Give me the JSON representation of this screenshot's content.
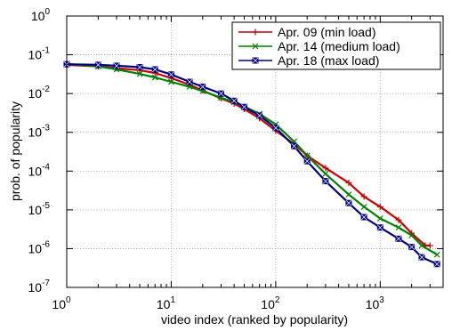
{
  "chart_data": {
    "type": "line",
    "xlabel": "video index (ranked by popularity)",
    "ylabel": "prob. of popularity",
    "x_scale": "log",
    "y_scale": "log",
    "xlim": [
      1,
      4000
    ],
    "ylim": [
      1e-07,
      1
    ],
    "grid": true,
    "legend_position": "top-right",
    "x_ticks": [
      {
        "base": "10",
        "exp": "0",
        "value": 1
      },
      {
        "base": "10",
        "exp": "1",
        "value": 10
      },
      {
        "base": "10",
        "exp": "2",
        "value": 100
      },
      {
        "base": "10",
        "exp": "3",
        "value": 1000
      }
    ],
    "y_ticks": [
      {
        "base": "10",
        "exp": "0",
        "value": 1
      },
      {
        "base": "10",
        "exp": "-1",
        "value": 0.1
      },
      {
        "base": "10",
        "exp": "-2",
        "value": 0.01
      },
      {
        "base": "10",
        "exp": "-3",
        "value": 0.001
      },
      {
        "base": "10",
        "exp": "-4",
        "value": 0.0001
      },
      {
        "base": "10",
        "exp": "-5",
        "value": 1e-05
      },
      {
        "base": "10",
        "exp": "-6",
        "value": 1e-06
      },
      {
        "base": "10",
        "exp": "-7",
        "value": 1e-07
      }
    ],
    "series": [
      {
        "name": "Apr. 09 (min load)",
        "color": "#cc0000",
        "marker": "plus",
        "x": [
          1,
          2,
          3,
          5,
          7,
          10,
          15,
          20,
          30,
          40,
          50,
          70,
          100,
          150,
          200,
          300,
          500,
          700,
          1000,
          1500,
          2000,
          2700,
          3000
        ],
        "y": [
          0.055,
          0.05,
          0.045,
          0.04,
          0.034,
          0.025,
          0.017,
          0.012,
          0.0075,
          0.0055,
          0.004,
          0.0023,
          0.0011,
          0.0005,
          0.00025,
          0.00012,
          5e-05,
          2.2e-05,
          1.2e-05,
          5.5e-06,
          2.5e-06,
          1.2e-06,
          1.2e-06
        ]
      },
      {
        "name": "Apr. 14 (medium load)",
        "color": "#008000",
        "marker": "x",
        "x": [
          1,
          2,
          3,
          5,
          7,
          10,
          15,
          20,
          30,
          40,
          50,
          70,
          100,
          150,
          200,
          300,
          500,
          700,
          1000,
          1500,
          2000,
          2500,
          3500
        ],
        "y": [
          0.058,
          0.05,
          0.042,
          0.032,
          0.026,
          0.02,
          0.015,
          0.0115,
          0.0078,
          0.006,
          0.0046,
          0.003,
          0.0016,
          0.00058,
          0.00025,
          8.5e-05,
          2.5e-05,
          1.2e-05,
          6e-06,
          3.5e-06,
          2.2e-06,
          1.2e-06,
          7e-07
        ]
      },
      {
        "name": "Apr. 18 (max load)",
        "color": "#000080",
        "marker": "box",
        "x": [
          1,
          2,
          3,
          5,
          7,
          10,
          15,
          20,
          30,
          40,
          50,
          70,
          100,
          150,
          200,
          300,
          500,
          700,
          1000,
          1500,
          2000,
          2500,
          3500
        ],
        "y": [
          0.057,
          0.055,
          0.052,
          0.048,
          0.042,
          0.031,
          0.02,
          0.015,
          0.01,
          0.0065,
          0.0045,
          0.0027,
          0.0013,
          0.00044,
          0.00018,
          5.5e-05,
          1.5e-05,
          6.5e-06,
          3.5e-06,
          1.8e-06,
          1.1e-06,
          6e-07,
          4e-07
        ]
      }
    ]
  }
}
